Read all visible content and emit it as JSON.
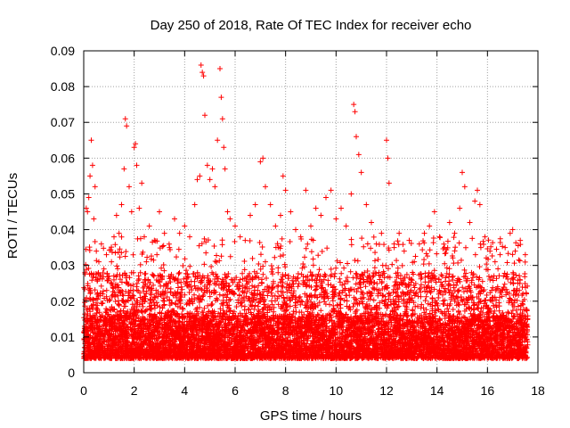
{
  "chart_data": {
    "type": "scatter",
    "title": "Day 250 of 2018, Rate Of TEC Index for receiver echo",
    "xlabel": "GPS time / hours",
    "ylabel": "ROTI / TECUs",
    "xlim": [
      0,
      18
    ],
    "ylim": [
      0,
      0.09
    ],
    "xticks": [
      "0",
      "2",
      "4",
      "6",
      "8",
      "10",
      "12",
      "14",
      "16",
      "18"
    ],
    "yticks": [
      "0",
      "0.01",
      "0.02",
      "0.03",
      "0.04",
      "0.05",
      "0.06",
      "0.07",
      "0.08",
      "0.09"
    ],
    "grid": true,
    "marker": "+",
    "color": "#ff0000",
    "x_range_of_data": [
      0,
      17.6
    ],
    "series": [
      {
        "x": [
          0.05,
          0.1,
          0.15,
          0.2,
          0.25,
          0.3,
          0.35,
          0.4,
          0.45,
          0.5,
          0.6,
          0.7,
          0.8,
          0.9,
          1.0,
          1.1,
          1.2,
          1.3,
          1.4,
          1.5,
          1.6,
          1.65,
          1.7,
          1.8,
          1.9,
          2.0,
          2.05,
          2.1,
          2.2,
          2.3,
          2.4,
          2.6,
          2.8,
          2.9,
          3.0,
          3.2,
          3.4,
          3.6,
          3.8,
          4.0,
          4.2,
          4.4,
          4.5,
          4.6,
          4.65,
          4.7,
          4.75,
          4.8,
          4.9,
          5.0,
          5.1,
          5.2,
          5.3,
          5.4,
          5.45,
          5.5,
          5.55,
          5.6,
          5.7,
          5.8,
          6.0,
          6.2,
          6.4,
          6.6,
          6.8,
          7.0,
          7.1,
          7.2,
          7.4,
          7.6,
          7.8,
          7.9,
          8.0,
          8.2,
          8.4,
          8.6,
          8.8,
          9.0,
          9.2,
          9.4,
          9.6,
          9.8,
          10.0,
          10.2,
          10.4,
          10.6,
          10.7,
          10.75,
          10.8,
          10.9,
          11.0,
          11.2,
          11.4,
          11.6,
          11.8,
          12.0,
          12.05,
          12.1,
          12.3,
          12.5,
          12.7,
          12.9,
          13.1,
          13.3,
          13.5,
          13.7,
          13.9,
          14.1,
          14.3,
          14.5,
          14.7,
          14.9,
          15.0,
          15.1,
          15.3,
          15.5,
          15.6,
          15.7,
          15.9,
          16.1,
          16.3,
          16.5,
          16.7,
          16.9,
          17.0,
          17.1,
          17.3,
          17.5
        ],
        "y": [
          0.028,
          0.046,
          0.045,
          0.049,
          0.055,
          0.065,
          0.058,
          0.043,
          0.052,
          0.034,
          0.031,
          0.036,
          0.029,
          0.033,
          0.027,
          0.031,
          0.038,
          0.044,
          0.039,
          0.047,
          0.057,
          0.071,
          0.069,
          0.052,
          0.045,
          0.063,
          0.064,
          0.058,
          0.046,
          0.053,
          0.038,
          0.041,
          0.037,
          0.033,
          0.045,
          0.039,
          0.035,
          0.043,
          0.039,
          0.041,
          0.038,
          0.047,
          0.054,
          0.055,
          0.086,
          0.084,
          0.083,
          0.072,
          0.058,
          0.054,
          0.057,
          0.052,
          0.065,
          0.085,
          0.077,
          0.071,
          0.063,
          0.057,
          0.045,
          0.043,
          0.041,
          0.038,
          0.037,
          0.044,
          0.047,
          0.059,
          0.06,
          0.052,
          0.047,
          0.041,
          0.044,
          0.055,
          0.051,
          0.045,
          0.04,
          0.038,
          0.051,
          0.041,
          0.046,
          0.044,
          0.049,
          0.051,
          0.043,
          0.046,
          0.041,
          0.05,
          0.075,
          0.073,
          0.066,
          0.061,
          0.056,
          0.047,
          0.042,
          0.036,
          0.039,
          0.065,
          0.06,
          0.053,
          0.036,
          0.039,
          0.034,
          0.037,
          0.031,
          0.036,
          0.039,
          0.041,
          0.045,
          0.038,
          0.035,
          0.042,
          0.039,
          0.046,
          0.056,
          0.052,
          0.042,
          0.048,
          0.051,
          0.047,
          0.038,
          0.034,
          0.031,
          0.033,
          0.035,
          0.039,
          0.04,
          0.034,
          0.037,
          0.033
        ]
      }
    ]
  }
}
